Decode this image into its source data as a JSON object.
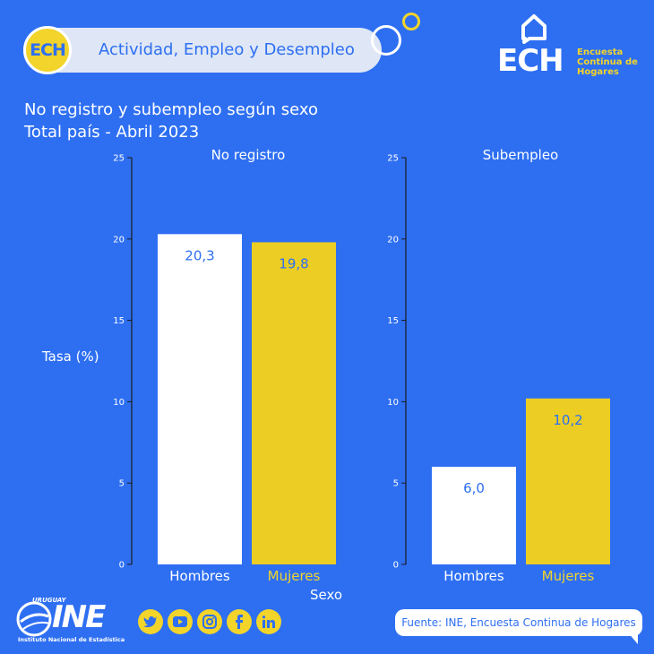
{
  "header": {
    "badge": "ECH",
    "title": "Actividad, Empleo y Desempleo"
  },
  "logo": {
    "big": "ECH",
    "line1": "Encuesta",
    "line2": "Continua de",
    "line3": "Hogares"
  },
  "titles": {
    "line1": "No registro y subempleo según sexo",
    "line2": "Total país - Abril 2023"
  },
  "axis": {
    "ylabel": "Tasa (%)",
    "xlabel": "Sexo"
  },
  "colors": {
    "background": "#2e6ff2",
    "hombres": "#ffffff",
    "mujeres": "#ebcd24",
    "label_text": "#2e6ff2"
  },
  "chart_data": [
    {
      "type": "bar",
      "title": "No registro",
      "categories": [
        "Hombres",
        "Mujeres"
      ],
      "values": [
        20.3,
        19.8
      ],
      "value_labels": [
        "20,3",
        "19,8"
      ],
      "ylim": [
        0,
        25
      ],
      "yticks": [
        "0",
        "5",
        "10",
        "15",
        "20",
        "25"
      ]
    },
    {
      "type": "bar",
      "title": "Subempleo",
      "categories": [
        "Hombres",
        "Mujeres"
      ],
      "values": [
        6.0,
        10.2
      ],
      "value_labels": [
        "6,0",
        "10,2"
      ],
      "ylim": [
        0,
        25
      ],
      "yticks": [
        "0",
        "5",
        "10",
        "15",
        "20",
        "25"
      ]
    }
  ],
  "footer": {
    "ine_country": "URUGUAY",
    "ine_name": "INE",
    "ine_full": "Instituto Nacional de Estadística",
    "source": "Fuente: INE, Encuesta Continua de Hogares",
    "social": [
      "twitter-icon",
      "youtube-icon",
      "instagram-icon",
      "facebook-icon",
      "linkedin-icon"
    ]
  }
}
